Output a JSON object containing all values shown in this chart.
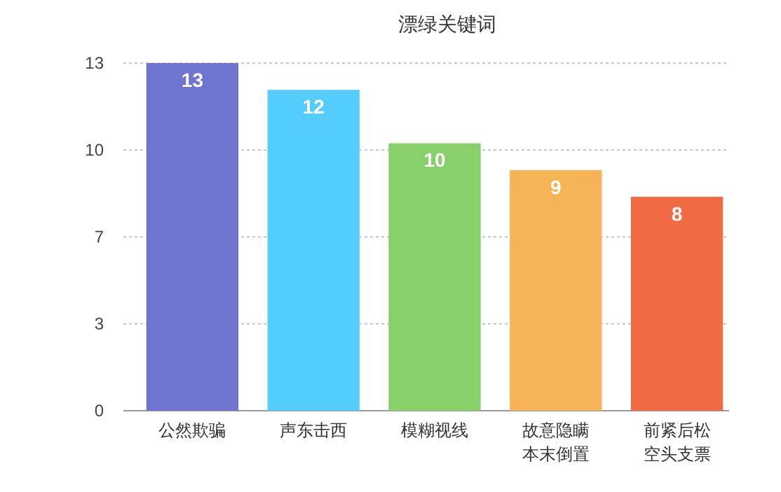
{
  "chart_data": {
    "type": "bar",
    "title": "漂绿关键词",
    "categories": [
      "公然欺骗",
      "声东击西",
      "模糊视线",
      "故意隐瞒本末倒置",
      "前紧后松空头支票"
    ],
    "values": [
      13,
      12,
      10,
      9,
      8
    ],
    "colors": [
      "#6f74d0",
      "#55cdfc",
      "#88d06a",
      "#f6b456",
      "#f06a44"
    ],
    "ylim": [
      0,
      13
    ],
    "yticks": [
      0,
      {
        "value": 3.25,
        "label": "3"
      },
      {
        "value": 6.5,
        "label": "7"
      },
      {
        "value": 9.75,
        "label": "10"
      },
      13
    ],
    "grid": "y",
    "data_labels": true
  }
}
